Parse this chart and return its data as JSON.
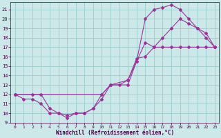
{
  "xlabel": "Windchill (Refroidissement éolien,°C)",
  "bg_color": "#cce8e8",
  "line_color": "#993399",
  "grid_color": "#99cccc",
  "xlim_min": -0.5,
  "xlim_max": 23.5,
  "ylim_min": 9,
  "ylim_max": 21.8,
  "xticks": [
    0,
    1,
    2,
    3,
    4,
    5,
    6,
    7,
    8,
    9,
    10,
    11,
    12,
    13,
    14,
    15,
    16,
    17,
    18,
    19,
    20,
    21,
    22,
    23
  ],
  "yticks": [
    9,
    10,
    11,
    12,
    13,
    14,
    15,
    16,
    17,
    18,
    19,
    20,
    21
  ],
  "line1_x": [
    0,
    1,
    2,
    3,
    4,
    5,
    6,
    7,
    8,
    9,
    10,
    11,
    13,
    14,
    15,
    16,
    17,
    18,
    19,
    20,
    21,
    22,
    23
  ],
  "line1_y": [
    12,
    11.5,
    11.5,
    11,
    10,
    10,
    9.5,
    10,
    10,
    10.5,
    11.5,
    13,
    13,
    15.5,
    20,
    21,
    21.2,
    21.5,
    21,
    20,
    19,
    18.5,
    17
  ],
  "line2_x": [
    0,
    2,
    3,
    4,
    5,
    6,
    7,
    8,
    9,
    10,
    11,
    12,
    13,
    14,
    15,
    16,
    17,
    18,
    19,
    20,
    21,
    22,
    23
  ],
  "line2_y": [
    12,
    12,
    12,
    10.5,
    10,
    9.8,
    10,
    10,
    10.5,
    12,
    13,
    13,
    13.5,
    15.8,
    16,
    17,
    18,
    19,
    20,
    19.5,
    19,
    18,
    17
  ],
  "line3_x": [
    0,
    10,
    11,
    13,
    14,
    15,
    16,
    17,
    18,
    19,
    20,
    21,
    22,
    23
  ],
  "line3_y": [
    12,
    12,
    13,
    13.5,
    15.5,
    17.5,
    17,
    17,
    17,
    17,
    17,
    17,
    17,
    17
  ]
}
